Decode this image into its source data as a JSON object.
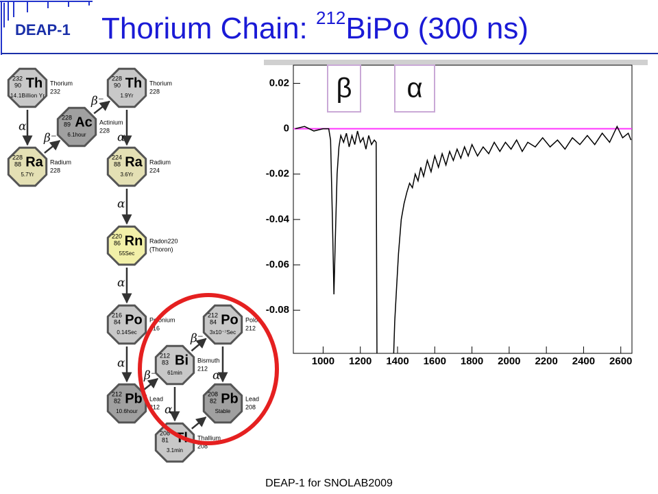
{
  "header": {
    "logo": "DEAP-1",
    "title_pre": "Thorium Chain: ",
    "title_sup": "212",
    "title_post": "BiPo (300 ns)"
  },
  "footer": "DEAP-1 for SNOLAB2009",
  "diagram": {
    "nodes": [
      {
        "mass": "232",
        "z": "90",
        "symbol": "Th",
        "halflife": "14.1Billion Yr",
        "name": "Thorium",
        "number": "232",
        "color": "#c8c8c8"
      },
      {
        "mass": "228",
        "z": "88",
        "symbol": "Ra",
        "halflife": "5.7Yr",
        "name": "Radium",
        "number": "228",
        "color": "#e4e0b4"
      },
      {
        "mass": "228",
        "z": "89",
        "symbol": "Ac",
        "halflife": "6.1hour",
        "name": "Actinium",
        "number": "228",
        "color": "#a0a0a0"
      },
      {
        "mass": "228",
        "z": "90",
        "symbol": "Th",
        "halflife": "1.9Yr",
        "name": "Thorium",
        "number": "228",
        "color": "#c8c8c8"
      },
      {
        "mass": "224",
        "z": "88",
        "symbol": "Ra",
        "halflife": "3.6Yr",
        "name": "Radium",
        "number": "224",
        "color": "#e4e0b4"
      },
      {
        "mass": "220",
        "z": "86",
        "symbol": "Rn",
        "halflife": "55Sec",
        "name": "Radon220",
        "number": "(Thoron)",
        "color": "#f2f0a8"
      },
      {
        "mass": "216",
        "z": "84",
        "symbol": "Po",
        "halflife": "0.14Sec",
        "name": "Polonium",
        "number": "216",
        "color": "#c8c8c8"
      },
      {
        "mass": "212",
        "z": "82",
        "symbol": "Pb",
        "halflife": "10.6hour",
        "name": "Lead",
        "number": "212",
        "color": "#a0a0a0"
      },
      {
        "mass": "212",
        "z": "83",
        "symbol": "Bi",
        "halflife": "61min",
        "name": "Bismuth",
        "number": "212",
        "color": "#c8c8c8"
      },
      {
        "mass": "212",
        "z": "84",
        "symbol": "Po",
        "halflife": "3x10⁻⁷Sec",
        "name": "Polon",
        "number": "212",
        "color": "#c8c8c8"
      },
      {
        "mass": "208",
        "z": "82",
        "symbol": "Pb",
        "halflife": "Stable",
        "name": "Lead",
        "number": "208",
        "color": "#a0a0a0"
      },
      {
        "mass": "208",
        "z": "81",
        "symbol": "Tl",
        "halflife": "3.1min",
        "name": "Thallium",
        "number": "208",
        "color": "#c8c8c8"
      }
    ],
    "edges": [
      {
        "from": 0,
        "to": 1,
        "label": "α"
      },
      {
        "from": 1,
        "to": 2,
        "label": "β⁻"
      },
      {
        "from": 2,
        "to": 3,
        "label": "β⁻"
      },
      {
        "from": 3,
        "to": 4,
        "label": "α"
      },
      {
        "from": 4,
        "to": 5,
        "label": "α"
      },
      {
        "from": 5,
        "to": 6,
        "label": "α"
      },
      {
        "from": 6,
        "to": 7,
        "label": "α"
      },
      {
        "from": 7,
        "to": 8,
        "label": "β⁻"
      },
      {
        "from": 8,
        "to": 9,
        "label": "β⁻"
      },
      {
        "from": 8,
        "to": 11,
        "label": "α"
      },
      {
        "from": 9,
        "to": 10,
        "label": "α"
      },
      {
        "from": 11,
        "to": 10
      }
    ]
  },
  "chart_data": {
    "type": "line",
    "annotations": [
      "β",
      "α"
    ],
    "x": [
      850,
      900,
      950,
      1000,
      1030,
      1040,
      1050,
      1058,
      1065,
      1075,
      1085,
      1095,
      1110,
      1125,
      1140,
      1155,
      1170,
      1185,
      1200,
      1215,
      1230,
      1245,
      1260,
      1275,
      1285,
      1290,
      1375,
      1385,
      1395,
      1405,
      1420,
      1435,
      1450,
      1465,
      1480,
      1495,
      1510,
      1525,
      1540,
      1560,
      1580,
      1600,
      1620,
      1640,
      1660,
      1680,
      1700,
      1720,
      1740,
      1760,
      1780,
      1800,
      1830,
      1860,
      1890,
      1920,
      1950,
      1980,
      2010,
      2040,
      2070,
      2100,
      2140,
      2180,
      2220,
      2260,
      2300,
      2340,
      2380,
      2420,
      2460,
      2500,
      2540,
      2580,
      2610,
      2640,
      2655
    ],
    "series": [
      {
        "color": "#000000",
        "values": [
          0.0,
          0.001,
          -0.001,
          0.0,
          0.0,
          -0.005,
          -0.04,
          -0.073,
          -0.05,
          -0.02,
          -0.008,
          -0.003,
          -0.006,
          -0.002,
          -0.008,
          -0.003,
          -0.007,
          -0.001,
          -0.006,
          -0.004,
          -0.009,
          -0.003,
          -0.007,
          -0.005,
          -0.006,
          -0.11,
          -0.11,
          -0.085,
          -0.07,
          -0.055,
          -0.04,
          -0.033,
          -0.028,
          -0.024,
          -0.026,
          -0.02,
          -0.023,
          -0.017,
          -0.021,
          -0.014,
          -0.019,
          -0.012,
          -0.017,
          -0.011,
          -0.016,
          -0.01,
          -0.014,
          -0.009,
          -0.013,
          -0.008,
          -0.012,
          -0.007,
          -0.012,
          -0.008,
          -0.011,
          -0.006,
          -0.01,
          -0.006,
          -0.009,
          -0.005,
          -0.01,
          -0.006,
          -0.008,
          -0.004,
          -0.008,
          -0.005,
          -0.009,
          -0.004,
          -0.007,
          -0.003,
          -0.007,
          -0.002,
          -0.006,
          0.001,
          -0.004,
          -0.002,
          -0.005
        ]
      }
    ],
    "reference_line": {
      "value": 0,
      "color": "#ff33ff"
    },
    "xlim": [
      840,
      2660
    ],
    "xticks": [
      1000,
      1200,
      1400,
      1600,
      1800,
      2000,
      2200,
      2400,
      2600
    ],
    "ylim": [
      -0.099,
      0.028
    ],
    "yticks": [
      0.02,
      0,
      -0.02,
      -0.04,
      -0.06,
      -0.08
    ]
  }
}
